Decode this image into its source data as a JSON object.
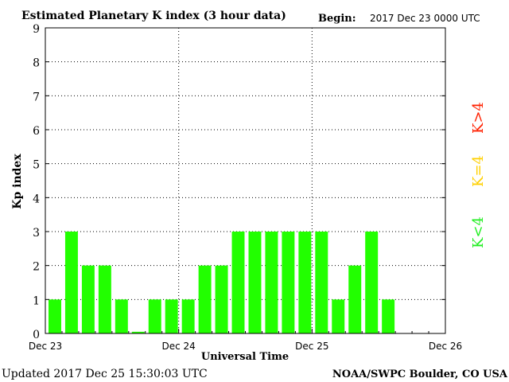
{
  "header": {
    "title": "Estimated Planetary K index (3 hour data)",
    "begin_label": "Begin:",
    "begin_value": "2017 Dec 23 0000 UTC"
  },
  "footer": {
    "updated": "Updated 2017 Dec 25 15:30:03 UTC",
    "source": "NOAA/SWPC Boulder, CO USA"
  },
  "legend": [
    {
      "label": "K>4",
      "color": "#ff2000"
    },
    {
      "label": "K=4",
      "color": "#ffd000"
    },
    {
      "label": "K<4",
      "color": "#22ee22"
    }
  ],
  "chart_data": {
    "type": "bar",
    "title": "Estimated Planetary K index (3 hour data)",
    "xlabel": "Universal Time",
    "ylabel": "Kp index",
    "ylim": [
      0,
      9
    ],
    "yticks": [
      "0",
      "1",
      "2",
      "3",
      "4",
      "5",
      "6",
      "7",
      "8",
      "9"
    ],
    "xticks": [
      "Dec 23",
      "Dec 24",
      "Dec 25",
      "Dec 26"
    ],
    "slots_total": 24,
    "values": [
      1,
      3,
      2,
      2,
      1,
      0.05,
      1,
      1,
      1,
      2,
      2,
      3,
      3,
      3,
      3,
      3,
      3,
      1,
      2,
      3,
      1
    ],
    "bar_color": "#22ff00",
    "grid": true,
    "grid_style": "dotted"
  }
}
